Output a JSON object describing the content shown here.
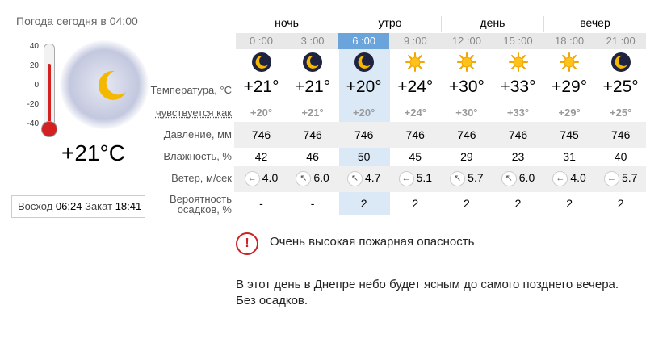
{
  "now": {
    "title": "Погода сегодня в 04:00",
    "temp": "+21°C",
    "scale": [
      "40",
      "20",
      "0",
      "-20",
      "-40"
    ],
    "thermometer_fill": 0.76,
    "sunrise_label": "Восход",
    "sunrise": "06:24",
    "sunset_label": "Закат",
    "sunset": "18:41"
  },
  "periods": [
    "ночь",
    "утро",
    "день",
    "вечер"
  ],
  "hours": [
    "0 :00",
    "3 :00",
    "6 :00",
    "9 :00",
    "12 :00",
    "15 :00",
    "18 :00",
    "21 :00"
  ],
  "icons": [
    "moon-icon",
    "moon-icon",
    "moon-icon",
    "sun-icon",
    "sun-icon",
    "sun-icon",
    "sun-icon",
    "moon-icon"
  ],
  "labels": {
    "temperature": "Температура, °С",
    "feels": "чувствуется как",
    "pressure": "Давление, мм",
    "humidity": "Влажность, %",
    "wind": "Ветер, м/сек",
    "precip_1": "Вероятность",
    "precip_2": "осадков, %"
  },
  "temperature": [
    "+21°",
    "+21°",
    "+20°",
    "+24°",
    "+30°",
    "+33°",
    "+29°",
    "+25°"
  ],
  "feels": [
    "+20°",
    "+21°",
    "+20°",
    "+24°",
    "+30°",
    "+33°",
    "+29°",
    "+25°"
  ],
  "pressure": [
    "746",
    "746",
    "746",
    "746",
    "746",
    "746",
    "745",
    "746"
  ],
  "humidity": [
    "42",
    "46",
    "50",
    "45",
    "29",
    "23",
    "31",
    "40"
  ],
  "wind": [
    "4.0",
    "6.0",
    "4.7",
    "5.1",
    "5.7",
    "6.0",
    "4.0",
    "5.7"
  ],
  "wind_dir": [
    "←",
    "↖",
    "↖",
    "←",
    "↖",
    "↖",
    "←",
    "←"
  ],
  "precip": [
    "-",
    "-",
    "2",
    "2",
    "2",
    "2",
    "2",
    "2"
  ],
  "warning": "Очень высокая пожарная опасность",
  "description": "В этот день в Днепре небо будет ясным до самого позднего вечера. Без осадков.",
  "colors": {
    "accent": "#6aa4db",
    "highlight": "#dbe9f7",
    "warning": "#cc2222"
  }
}
